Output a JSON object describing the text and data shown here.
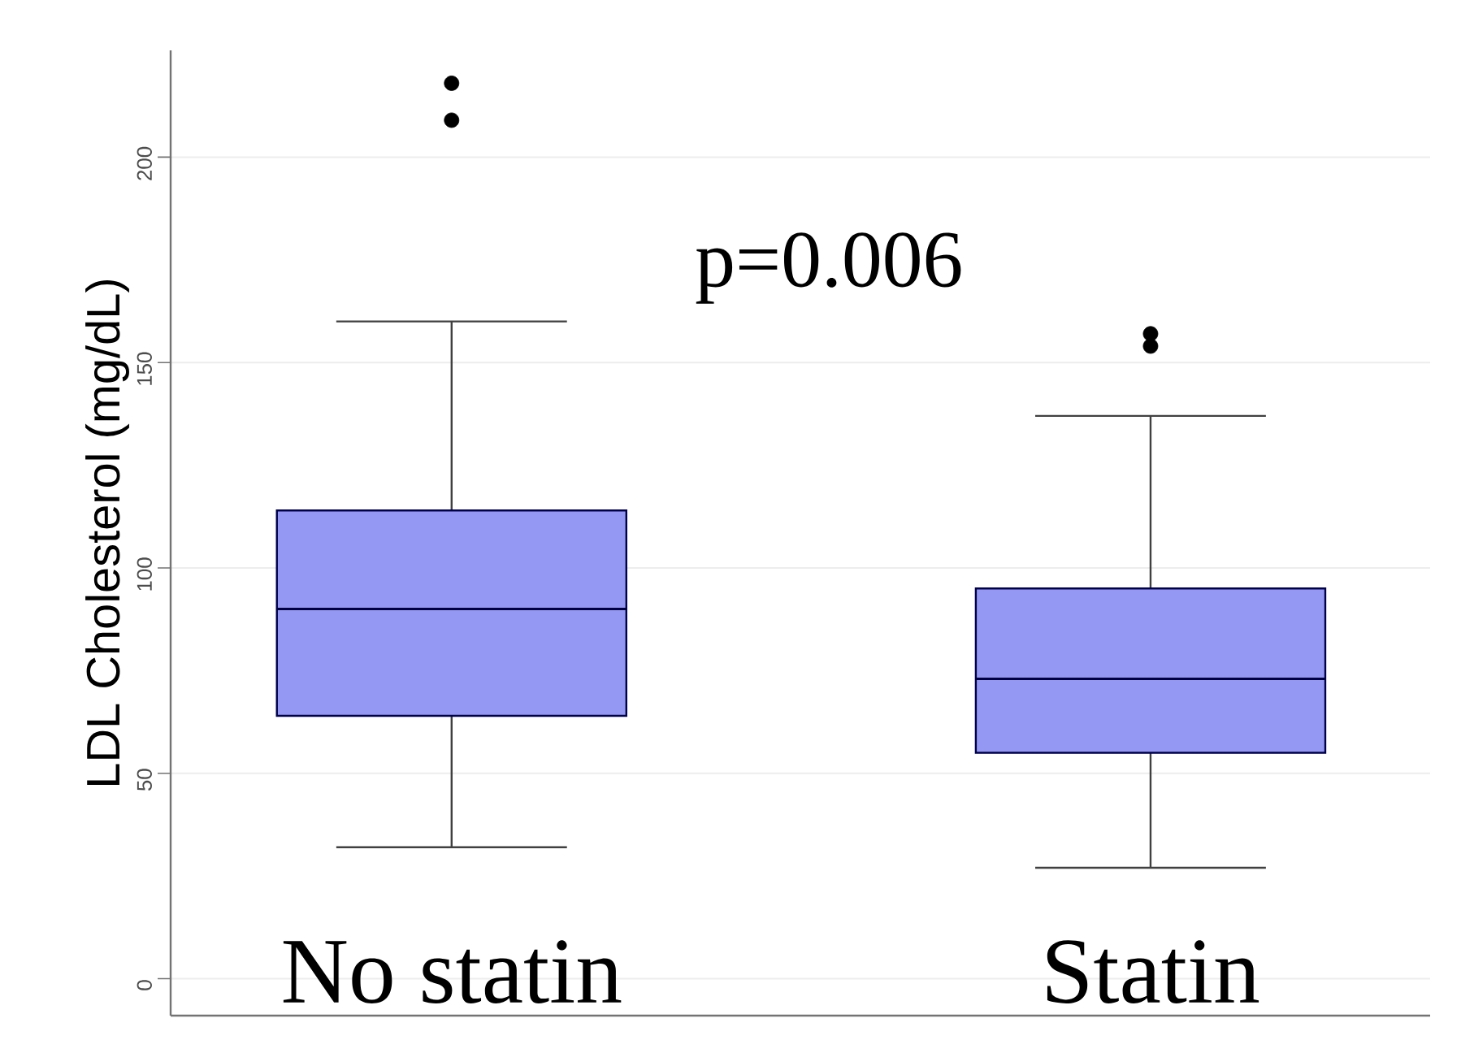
{
  "chart_data": {
    "type": "box",
    "ylabel": "LDL Cholesterol (mg/dL)",
    "categories": [
      "No statin",
      "Statin"
    ],
    "boxes": [
      {
        "low": 32,
        "q1": 64,
        "median": 90,
        "q3": 114,
        "high": 160,
        "outliers": [
          209,
          218
        ]
      },
      {
        "low": 27,
        "q1": 55,
        "median": 73,
        "q3": 95,
        "high": 137,
        "outliers": [
          154,
          157
        ]
      }
    ],
    "color": "#9498f2",
    "ylim": [
      -9,
      226
    ],
    "yticks": [
      0,
      50,
      100,
      150,
      200
    ],
    "grid": "y",
    "annotations": [
      {
        "text": "p=0.006"
      }
    ]
  }
}
